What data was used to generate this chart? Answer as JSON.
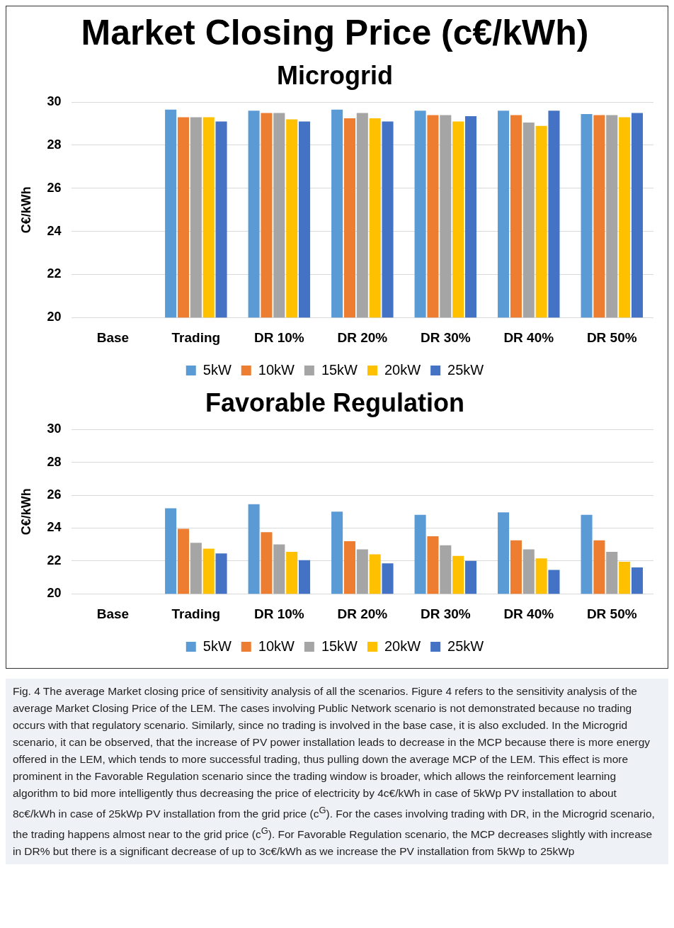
{
  "chart_data": [
    {
      "type": "bar",
      "title": "Market Closing Price (c€/kWh)",
      "subtitle": "Microgrid",
      "ylabel": "C€/kWh",
      "categories": [
        "Base",
        "Trading",
        "DR 10%",
        "DR 20%",
        "DR 30%",
        "DR 40%",
        "DR 50%"
      ],
      "ylim": [
        20,
        30
      ],
      "yticks": [
        20,
        22,
        24,
        26,
        28,
        30
      ],
      "grid": "y",
      "legend": "bottom",
      "series": [
        {
          "name": "5kW",
          "color": "#5b9bd5",
          "values": [
            null,
            29.65,
            29.6,
            29.65,
            29.6,
            29.6,
            29.45
          ]
        },
        {
          "name": "10kW",
          "color": "#ed7d31",
          "values": [
            null,
            29.3,
            29.5,
            29.25,
            29.4,
            29.4,
            29.4
          ]
        },
        {
          "name": "15kW",
          "color": "#a5a5a5",
          "values": [
            null,
            29.3,
            29.5,
            29.5,
            29.4,
            29.05,
            29.4
          ]
        },
        {
          "name": "20kW",
          "color": "#ffc000",
          "values": [
            null,
            29.3,
            29.2,
            29.25,
            29.1,
            28.9,
            29.3
          ]
        },
        {
          "name": "25kW",
          "color": "#4472c4",
          "values": [
            null,
            29.1,
            29.1,
            29.1,
            29.35,
            29.6,
            29.5
          ]
        }
      ]
    },
    {
      "type": "bar",
      "title": "Favorable Regulation",
      "ylabel": "C€/kWh",
      "categories": [
        "Base",
        "Trading",
        "DR 10%",
        "DR 20%",
        "DR 30%",
        "DR 40%",
        "DR 50%"
      ],
      "ylim": [
        20,
        30
      ],
      "yticks": [
        20,
        22,
        24,
        26,
        28,
        30
      ],
      "grid": "y",
      "legend": "bottom",
      "series": [
        {
          "name": "5kW",
          "color": "#5b9bd5",
          "values": [
            null,
            25.2,
            25.45,
            25.0,
            24.8,
            24.95,
            24.8
          ]
        },
        {
          "name": "10kW",
          "color": "#ed7d31",
          "values": [
            null,
            23.95,
            23.75,
            23.2,
            23.5,
            23.25,
            23.25
          ]
        },
        {
          "name": "15kW",
          "color": "#a5a5a5",
          "values": [
            null,
            23.1,
            23.0,
            22.7,
            22.95,
            22.7,
            22.55
          ]
        },
        {
          "name": "20kW",
          "color": "#ffc000",
          "values": [
            null,
            22.75,
            22.55,
            22.4,
            22.3,
            22.15,
            21.95
          ]
        },
        {
          "name": "25kW",
          "color": "#4472c4",
          "values": [
            null,
            22.45,
            22.05,
            21.85,
            22.0,
            21.45,
            21.6
          ]
        }
      ],
      "annotations": [
        "Fig. 4  The average Market closing price of sensitivity analysis of all the scenarios. Figure 4 refers to the sensitivity analysis of the average Market Closing Price of the LEM. The cases involving Public Network scenario is not demonstrated because no trading occurs with that regulatory scenario. Similarly, since no trading is involved in the base case, it is also excluded. In the Microgrid scenario, it can be observed, that the increase of PV power installation leads to decrease in the MCP because there is more energy offered in the LEM, which tends to more successful trading, thus pulling down the average MCP of the LEM. This effect is more prominent in the Favorable Regulation scenario since the trading window is broader, which allows the reinforcement learning algorithm to bid more intelligently thus decreasing the price of electricity by 4c€/kWh in case of 5kWp PV installation to about 8c€/kWh in case of 25kWp PV installation from the grid price (c$^{G}$). For the cases involving trading with DR, in the Microgrid scenario, the trading happens almost near to the grid price (c$^{G}$). For Favorable Regulation scenario, the MCP decreases slightly with increase in DR% but there is a significant decrease of up to 3c€/kWh as we increase the PV installation from 5kWp to 25kWp"
      ]
    }
  ]
}
